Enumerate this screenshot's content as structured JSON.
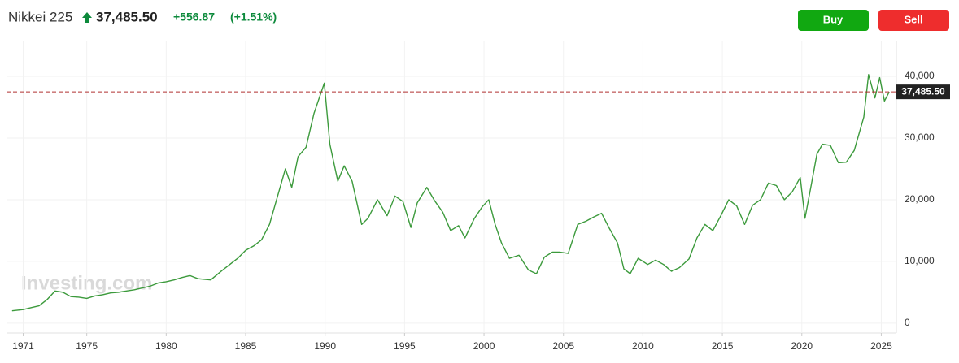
{
  "chart_data": {
    "type": "line",
    "title": "Nikkei 225",
    "price": {
      "value": 37485.5,
      "label": "37,485.50"
    },
    "change": {
      "value": 556.87,
      "label": "+556.87"
    },
    "change_percent": {
      "value": 1.51,
      "label": "(+1.51%)"
    },
    "buttons": [
      "Buy",
      "Sell"
    ],
    "watermark": "Investing.com",
    "x": [
      1970.3,
      1971.0,
      1971.5,
      1972.0,
      1972.5,
      1973.0,
      1973.5,
      1974.0,
      1974.5,
      1975.0,
      1975.5,
      1976.0,
      1976.5,
      1977.0,
      1977.5,
      1978.0,
      1978.5,
      1979.0,
      1979.5,
      1980.0,
      1980.5,
      1981.0,
      1981.5,
      1982.0,
      1982.8,
      1983.5,
      1984.0,
      1984.5,
      1985.0,
      1985.5,
      1986.0,
      1986.5,
      1987.0,
      1987.5,
      1987.9,
      1988.3,
      1988.8,
      1989.3,
      1989.95,
      1990.3,
      1990.8,
      1991.2,
      1991.7,
      1992.3,
      1992.7,
      1993.3,
      1993.9,
      1994.4,
      1994.9,
      1995.4,
      1995.8,
      1996.4,
      1996.9,
      1997.4,
      1997.9,
      1998.4,
      1998.8,
      1999.4,
      1999.9,
      2000.3,
      2000.7,
      2001.1,
      2001.6,
      2002.2,
      2002.8,
      2003.3,
      2003.8,
      2004.3,
      2004.8,
      2005.3,
      2005.9,
      2006.4,
      2006.9,
      2007.4,
      2007.9,
      2008.4,
      2008.8,
      2009.2,
      2009.7,
      2010.3,
      2010.8,
      2011.3,
      2011.8,
      2012.3,
      2012.9,
      2013.4,
      2013.9,
      2014.4,
      2014.9,
      2015.4,
      2015.9,
      2016.4,
      2016.9,
      2017.4,
      2017.9,
      2018.4,
      2018.9,
      2019.4,
      2019.9,
      2020.2,
      2020.6,
      2020.95,
      2021.3,
      2021.8,
      2022.3,
      2022.8,
      2023.3,
      2023.9,
      2024.2,
      2024.6,
      2024.9,
      2025.2,
      2025.5
    ],
    "series": [
      {
        "name": "Nikkei 225",
        "color": "#3c9a3c",
        "values": [
          2000,
          2200,
          2500,
          2800,
          3800,
          5200,
          5000,
          4300,
          4200,
          4000,
          4400,
          4600,
          4900,
          5000,
          5200,
          5400,
          5700,
          6000,
          6500,
          6700,
          7000,
          7400,
          7700,
          7200,
          7000,
          8500,
          9500,
          10500,
          11800,
          12500,
          13500,
          16000,
          20500,
          25000,
          22000,
          27000,
          28500,
          34000,
          38900,
          29000,
          23000,
          25500,
          23000,
          16000,
          17000,
          20000,
          17400,
          20600,
          19700,
          15500,
          19500,
          22000,
          19800,
          18000,
          15000,
          15800,
          13800,
          17000,
          18900,
          20000,
          16000,
          13000,
          10500,
          11000,
          8600,
          8000,
          10700,
          11500,
          11500,
          11300,
          16000,
          16500,
          17200,
          17800,
          15300,
          13000,
          8800,
          8000,
          10500,
          9500,
          10200,
          9500,
          8400,
          9000,
          10400,
          13800,
          16000,
          15000,
          17400,
          20000,
          19000,
          16000,
          19100,
          20000,
          22700,
          22300,
          20000,
          21300,
          23600,
          17000,
          22500,
          27400,
          29000,
          28800,
          26000,
          26100,
          28000,
          33400,
          40300,
          36500,
          39800,
          36000,
          37485.5
        ]
      }
    ],
    "xlim": [
      1969.95,
      2025.95
    ],
    "ylim": [
      -1600,
      45800
    ],
    "xticks": [
      1971,
      1975,
      1980,
      1985,
      1990,
      1995,
      2000,
      2005,
      2010,
      2015,
      2020,
      2025
    ],
    "yticks": [
      0,
      {
        "value": 10000,
        "label": "10,000"
      },
      {
        "value": 20000,
        "label": "20,000"
      },
      {
        "value": 30000,
        "label": "30,000"
      },
      {
        "value": 40000,
        "label": "40,000"
      }
    ],
    "grid": true
  }
}
